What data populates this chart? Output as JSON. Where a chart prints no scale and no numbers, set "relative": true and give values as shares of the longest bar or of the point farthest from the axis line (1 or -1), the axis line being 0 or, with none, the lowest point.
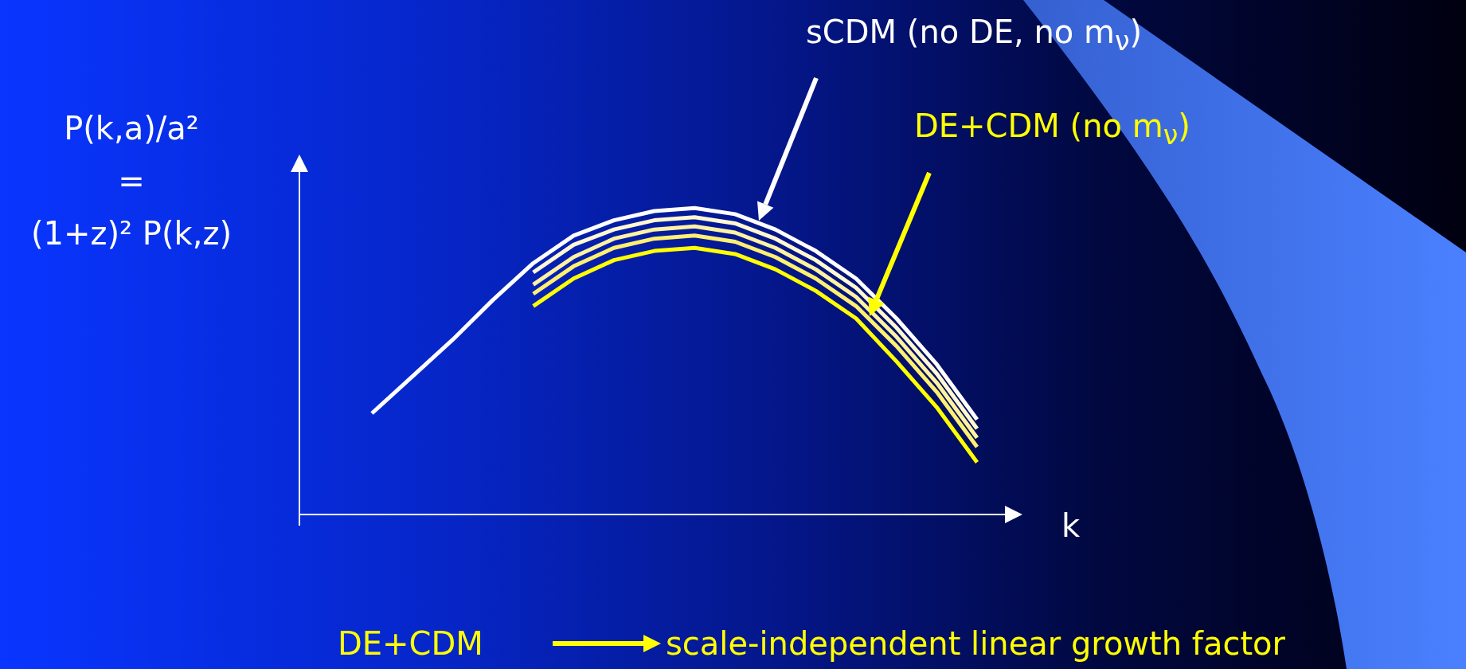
{
  "chart_data": {
    "type": "line",
    "relative": true,
    "ylabel": "P(k,a)/a²\n=\n(1+z)² P(k,z)",
    "xlabel": "k",
    "categories": [
      null,
      null,
      null,
      null,
      null,
      null,
      null,
      null,
      null,
      null,
      null,
      null,
      null,
      null,
      null,
      null
    ],
    "series": [
      {
        "color": "#ffffff",
        "values": [
          0.33,
          0.45,
          0.57,
          0.7,
          0.82,
          0.91,
          0.96,
          0.99,
          1.0,
          0.98,
          0.93,
          0.86,
          0.77,
          0.64,
          0.49,
          0.31
        ]
      },
      {
        "color": "#fff8d0",
        "values": [
          null,
          null,
          null,
          null,
          0.79,
          0.88,
          0.93,
          0.96,
          0.97,
          0.95,
          0.9,
          0.83,
          0.74,
          0.61,
          0.46,
          0.28
        ]
      },
      {
        "color": "#fff2a0",
        "values": [
          null,
          null,
          null,
          null,
          0.75,
          0.84,
          0.9,
          0.93,
          0.94,
          0.92,
          0.87,
          0.8,
          0.71,
          0.58,
          0.43,
          0.25
        ]
      },
      {
        "color": "#fff070",
        "values": [
          null,
          null,
          null,
          null,
          0.72,
          0.81,
          0.87,
          0.9,
          0.91,
          0.89,
          0.84,
          0.77,
          0.68,
          0.55,
          0.4,
          0.22
        ]
      },
      {
        "color": "#ffff00",
        "values": [
          null,
          null,
          null,
          null,
          0.68,
          0.77,
          0.83,
          0.86,
          0.87,
          0.85,
          0.8,
          0.73,
          0.64,
          0.5,
          0.35,
          0.17
        ]
      }
    ],
    "annotations": [
      "sCDM (no DE, no m$_{ν}$)",
      "DE+CDM (no m$_{ν}$)",
      "DE+CDM",
      "scale-independent linear growth factor"
    ],
    "grid": false,
    "legend": false,
    "tick_labels": false,
    "marker": "none",
    "line_style": "solid"
  }
}
